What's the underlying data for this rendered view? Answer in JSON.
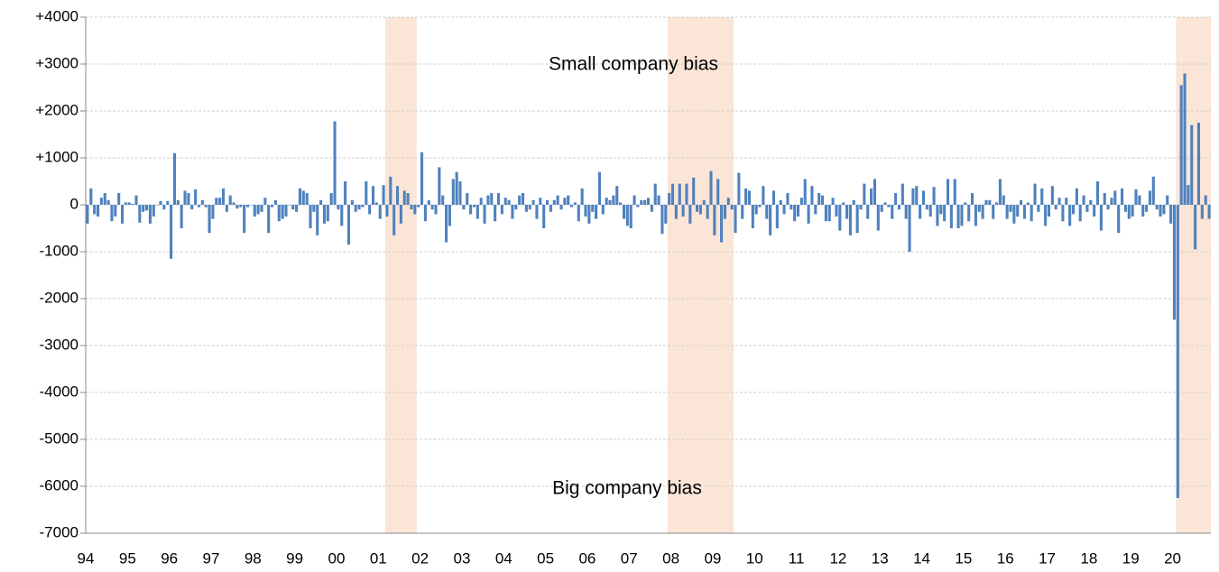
{
  "chart_data": {
    "type": "bar",
    "color": "#4f81bd",
    "shade_color": "#fbe5d6",
    "annotations": [
      "Small company bias",
      "Big company bias"
    ],
    "categories": [
      "94",
      null,
      null,
      null,
      null,
      null,
      null,
      null,
      null,
      null,
      null,
      null,
      "95",
      null,
      null,
      null,
      null,
      null,
      null,
      null,
      null,
      null,
      null,
      null,
      "96",
      null,
      null,
      null,
      null,
      null,
      null,
      null,
      null,
      null,
      null,
      null,
      "97",
      null,
      null,
      null,
      null,
      null,
      null,
      null,
      null,
      null,
      null,
      null,
      "98",
      null,
      null,
      null,
      null,
      null,
      null,
      null,
      null,
      null,
      null,
      null,
      "99",
      null,
      null,
      null,
      null,
      null,
      null,
      null,
      null,
      null,
      null,
      null,
      "00",
      null,
      null,
      null,
      null,
      null,
      null,
      null,
      null,
      null,
      null,
      null,
      "01",
      null,
      null,
      null,
      null,
      null,
      null,
      null,
      null,
      null,
      null,
      null,
      "02",
      null,
      null,
      null,
      null,
      null,
      null,
      null,
      null,
      null,
      null,
      null,
      "03",
      null,
      null,
      null,
      null,
      null,
      null,
      null,
      null,
      null,
      null,
      null,
      "04",
      null,
      null,
      null,
      null,
      null,
      null,
      null,
      null,
      null,
      null,
      null,
      "05",
      null,
      null,
      null,
      null,
      null,
      null,
      null,
      null,
      null,
      null,
      null,
      "06",
      null,
      null,
      null,
      null,
      null,
      null,
      null,
      null,
      null,
      null,
      null,
      "07",
      null,
      null,
      null,
      null,
      null,
      null,
      null,
      null,
      null,
      null,
      null,
      "08",
      null,
      null,
      null,
      null,
      null,
      null,
      null,
      null,
      null,
      null,
      null,
      "09",
      null,
      null,
      null,
      null,
      null,
      null,
      null,
      null,
      null,
      null,
      null,
      "10",
      null,
      null,
      null,
      null,
      null,
      null,
      null,
      null,
      null,
      null,
      null,
      "11",
      null,
      null,
      null,
      null,
      null,
      null,
      null,
      null,
      null,
      null,
      null,
      "12",
      null,
      null,
      null,
      null,
      null,
      null,
      null,
      null,
      null,
      null,
      null,
      "13",
      null,
      null,
      null,
      null,
      null,
      null,
      null,
      null,
      null,
      null,
      null,
      "14",
      null,
      null,
      null,
      null,
      null,
      null,
      null,
      null,
      null,
      null,
      null,
      "15",
      null,
      null,
      null,
      null,
      null,
      null,
      null,
      null,
      null,
      null,
      null,
      "16",
      null,
      null,
      null,
      null,
      null,
      null,
      null,
      null,
      null,
      null,
      null,
      "17",
      null,
      null,
      null,
      null,
      null,
      null,
      null,
      null,
      null,
      null,
      null,
      "18",
      null,
      null,
      null,
      null,
      null,
      null,
      null,
      null,
      null,
      null,
      null,
      "19",
      null,
      null,
      null,
      null,
      null,
      null,
      null,
      null,
      null,
      null,
      null,
      "20",
      null,
      null,
      null,
      null,
      null,
      null,
      null,
      null,
      null,
      null
    ],
    "values": [
      -400,
      350,
      -200,
      -250,
      150,
      250,
      100,
      -350,
      -250,
      250,
      -400,
      50,
      50,
      20,
      200,
      -380,
      -150,
      -120,
      -400,
      -250,
      0,
      80,
      -100,
      80,
      -1150,
      1100,
      100,
      -500,
      300,
      250,
      -100,
      330,
      -50,
      100,
      -50,
      -600,
      -300,
      150,
      150,
      350,
      -150,
      200,
      50,
      -80,
      -50,
      -600,
      -50,
      0,
      -250,
      -200,
      -150,
      150,
      -600,
      -50,
      100,
      -350,
      -300,
      -250,
      0,
      -100,
      -150,
      350,
      300,
      250,
      -500,
      -150,
      -650,
      100,
      -400,
      -350,
      250,
      1780,
      -100,
      -450,
      500,
      -850,
      100,
      -150,
      -100,
      -50,
      500,
      -200,
      400,
      50,
      -300,
      420,
      -250,
      600,
      -650,
      400,
      -400,
      300,
      250,
      -100,
      -200,
      -50,
      1120,
      -350,
      100,
      -100,
      -200,
      800,
      200,
      -800,
      -450,
      550,
      700,
      500,
      -100,
      250,
      -200,
      -50,
      -300,
      150,
      -400,
      200,
      250,
      -350,
      250,
      -200,
      150,
      100,
      -300,
      -100,
      200,
      250,
      -150,
      -100,
      100,
      -300,
      150,
      -500,
      100,
      -150,
      100,
      200,
      -100,
      150,
      200,
      -50,
      50,
      -350,
      350,
      -250,
      -400,
      -150,
      -300,
      700,
      -200,
      150,
      100,
      200,
      400,
      50,
      -300,
      -450,
      -500,
      200,
      -50,
      100,
      100,
      150,
      -150,
      450,
      200,
      -620,
      -400,
      250,
      450,
      -300,
      450,
      -250,
      450,
      -400,
      580,
      -150,
      -200,
      100,
      -300,
      720,
      -650,
      550,
      -800,
      -300,
      150,
      -100,
      -600,
      680,
      -300,
      350,
      300,
      -500,
      -200,
      -50,
      400,
      -300,
      -650,
      300,
      -500,
      100,
      -200,
      250,
      -100,
      -350,
      -250,
      150,
      550,
      -400,
      400,
      -200,
      250,
      200,
      -350,
      -350,
      150,
      -250,
      -550,
      50,
      -300,
      -650,
      100,
      -600,
      -100,
      450,
      -300,
      350,
      550,
      -550,
      -150,
      50,
      -50,
      -300,
      250,
      -100,
      450,
      -300,
      -1000,
      350,
      400,
      -300,
      300,
      -100,
      -250,
      380,
      -450,
      -200,
      -350,
      550,
      -500,
      550,
      -500,
      -450,
      50,
      -350,
      250,
      -450,
      -150,
      -300,
      100,
      100,
      -300,
      50,
      550,
      200,
      -300,
      -150,
      -400,
      -250,
      100,
      -300,
      50,
      -350,
      450,
      -150,
      350,
      -450,
      -250,
      400,
      -100,
      150,
      -350,
      150,
      -450,
      -200,
      350,
      -350,
      200,
      -150,
      100,
      -250,
      500,
      -550,
      250,
      -100,
      150,
      300,
      -600,
      350,
      -150,
      -300,
      -250,
      330,
      200,
      -250,
      -150,
      300,
      600,
      -100,
      -250,
      -200,
      200,
      -400,
      -2450,
      -6250,
      2550,
      2800,
      420,
      1700,
      -950,
      1750,
      -300,
      200,
      -300
    ],
    "shaded_periods": [
      {
        "start": 86,
        "end": 94
      },
      {
        "start": 167,
        "end": 185
      },
      {
        "start": 313,
        "end": 322
      }
    ],
    "ylim": [
      -7000,
      4000
    ],
    "yticks": [
      {
        "value": 4000,
        "label": "+4000"
      },
      {
        "value": 3000,
        "label": "+3000"
      },
      {
        "value": 2000,
        "label": "+2000"
      },
      {
        "value": 1000,
        "label": "+1000"
      },
      0,
      -1000,
      -2000,
      -3000,
      -4000,
      -5000,
      -6000,
      -7000
    ],
    "grid": true
  }
}
